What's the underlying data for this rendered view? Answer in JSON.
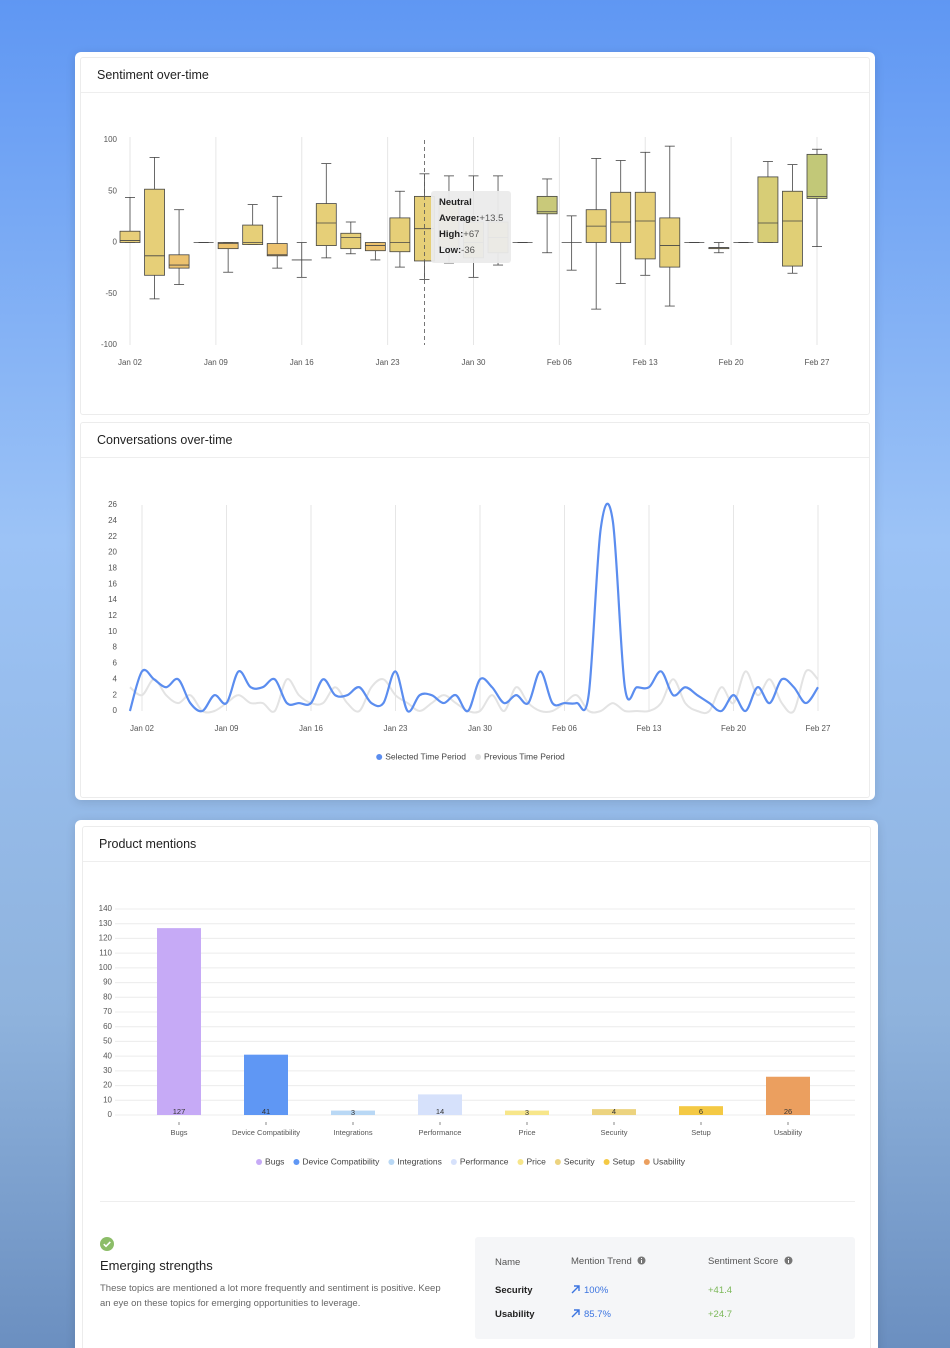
{
  "chart_data": [
    {
      "type": "box",
      "title": "Sentiment over-time",
      "x": [
        0,
        2,
        4,
        6,
        8,
        10,
        12,
        14,
        16,
        18,
        20,
        22,
        24,
        26,
        28,
        30,
        32,
        34,
        36,
        38,
        40,
        42,
        44,
        46,
        48,
        50,
        52,
        54,
        56
      ],
      "low": [
        0,
        -55,
        -41,
        0,
        -29,
        -2,
        -25,
        -34,
        -15,
        -11,
        -17,
        -24,
        -36,
        -20,
        -34,
        -22,
        0,
        -10,
        -27,
        -65,
        -40,
        -32,
        -62,
        0,
        -10,
        0,
        0,
        -30,
        -4
      ],
      "q1": [
        0,
        -32,
        -25,
        0,
        -6,
        -2,
        -13,
        -17,
        -3,
        -6,
        -8,
        -9,
        -18,
        -5,
        -15,
        -10,
        0,
        28,
        0,
        0,
        0,
        -16,
        -24,
        0,
        -6,
        0,
        0,
        -23,
        43
      ],
      "median": [
        2,
        -13,
        -22,
        0,
        -1,
        0,
        -12,
        -17,
        19,
        5,
        -3,
        0,
        13.5,
        10,
        0,
        5,
        0,
        30,
        0,
        16,
        20,
        21,
        -3,
        0,
        -5,
        0,
        19,
        21,
        45
      ],
      "q3": [
        11,
        52,
        -12,
        0,
        0,
        17,
        -1,
        -17,
        38,
        9,
        0,
        24,
        45,
        40,
        20,
        20,
        0,
        45,
        0,
        32,
        49,
        49,
        24,
        0,
        -5,
        0,
        64,
        50,
        86
      ],
      "high": [
        44,
        83,
        32,
        0,
        0,
        37,
        45,
        0,
        77,
        20,
        0,
        50,
        67,
        65,
        65,
        65,
        0,
        62,
        26,
        82,
        80,
        88,
        94,
        0,
        0,
        0,
        79,
        76,
        91
      ],
      "colors": [
        "#e8cf7a",
        "#e6cf78",
        "#ecc26f",
        "#e6cf78",
        "#ecc26f",
        "#e6cf78",
        "#ecc26f",
        "#e6cf78",
        "#e6cf78",
        "#e6cf78",
        "#ecc26f",
        "#e6cf78",
        "#e6cf78",
        "#e6cf78",
        "#e6cf78",
        "#e6cf78",
        "#e6cf78",
        "#c9c97a",
        "#e6cf78",
        "#e6cf78",
        "#e6cf78",
        "#e6cf78",
        "#e6cf78",
        "#e6cf78",
        "#e6cf78",
        "#e6cf78",
        "#d7cd76",
        "#e0cf76",
        "#c2c878"
      ],
      "xlim": [
        0,
        56
      ],
      "xticks": [
        {
          "value": 0,
          "label": "Jan 02"
        },
        {
          "value": 7,
          "label": "Jan 09"
        },
        {
          "value": 14,
          "label": "Jan 16"
        },
        {
          "value": 21,
          "label": "Jan 23"
        },
        {
          "value": 28,
          "label": "Jan 30"
        },
        {
          "value": 35,
          "label": "Feb 06"
        },
        {
          "value": 42,
          "label": "Feb 13"
        },
        {
          "value": 49,
          "label": "Feb 20"
        },
        {
          "value": 56,
          "label": "Feb 27"
        }
      ],
      "ylim": [
        -100,
        100
      ],
      "yticks": [
        -100,
        -50,
        0,
        50,
        100
      ],
      "grid": true,
      "tooltip": {
        "index": 12,
        "title": "Neutral",
        "rows": [
          {
            "label": "Average:",
            "value": "+13.5"
          },
          {
            "label": "High:",
            "value": "+67"
          },
          {
            "label": "Low:",
            "value": "-36"
          }
        ]
      }
    },
    {
      "type": "line",
      "title": "Conversations over-time",
      "x": [
        -1,
        0,
        1,
        2,
        3,
        4,
        5,
        6,
        7,
        8,
        9,
        10,
        11,
        12,
        13,
        14,
        15,
        16,
        17,
        18,
        19,
        20,
        21,
        22,
        23,
        24,
        25,
        26,
        27,
        28,
        29,
        30,
        31,
        32,
        33,
        34,
        35,
        36,
        37,
        38,
        39,
        40,
        41,
        42,
        43,
        44,
        45,
        46,
        47,
        48,
        49,
        50,
        51,
        52,
        53,
        54,
        55,
        56
      ],
      "series": [
        {
          "name": "Previous Time Period",
          "color": "#e3e3e3",
          "values": [
            3,
            2,
            4,
            2,
            1,
            2,
            0,
            0,
            1,
            2,
            1,
            1,
            0,
            4,
            2,
            1,
            1,
            3,
            1,
            0,
            3,
            4,
            2,
            1,
            0,
            1,
            2,
            1,
            0,
            0,
            2,
            0,
            3,
            1,
            0,
            0,
            1,
            2,
            0,
            0,
            1,
            0,
            0,
            0,
            1,
            4,
            1,
            0,
            0,
            3,
            1,
            5,
            2,
            4,
            1,
            0,
            5,
            4
          ]
        },
        {
          "name": "Selected Time Period",
          "color": "#5b8def",
          "values": [
            0,
            5,
            4,
            3,
            4,
            1,
            0,
            2,
            1,
            5,
            3,
            3,
            4,
            1,
            1,
            1,
            4,
            2,
            2,
            3,
            1,
            1,
            5,
            0,
            2,
            2,
            1,
            2,
            0,
            4,
            3,
            1,
            2,
            1,
            5,
            1,
            1,
            1,
            2,
            23,
            24,
            3,
            3,
            3,
            5,
            2,
            3,
            2,
            1,
            0,
            2,
            0,
            3,
            1,
            4,
            3,
            1,
            3
          ]
        }
      ],
      "legend_order": [
        1,
        0
      ],
      "xlim": [
        -1,
        56
      ],
      "xticks": [
        {
          "value": 0,
          "label": "Jan 02"
        },
        {
          "value": 7,
          "label": "Jan 09"
        },
        {
          "value": 14,
          "label": "Jan 16"
        },
        {
          "value": 21,
          "label": "Jan 23"
        },
        {
          "value": 28,
          "label": "Jan 30"
        },
        {
          "value": 35,
          "label": "Feb 06"
        },
        {
          "value": 42,
          "label": "Feb 13"
        },
        {
          "value": 49,
          "label": "Feb 20"
        },
        {
          "value": 56,
          "label": "Feb 27"
        }
      ],
      "ylim": [
        0,
        26
      ],
      "yticks": [
        0,
        2,
        4,
        6,
        8,
        10,
        12,
        14,
        16,
        18,
        20,
        22,
        24,
        26
      ],
      "grid": true,
      "legend": "bottom"
    },
    {
      "type": "bar",
      "title": "Product mentions",
      "categories": [
        "Bugs",
        "Device Compatibility",
        "Integrations",
        "Performance",
        "Price",
        "Security",
        "Setup",
        "Usability"
      ],
      "values": [
        127,
        41,
        3,
        14,
        3,
        4,
        6,
        26
      ],
      "colors": [
        "#c6aaf6",
        "#5f97f4",
        "#b9d8f5",
        "#d6e1fb",
        "#f7e68a",
        "#ecd37f",
        "#f4c944",
        "#eb9f5f"
      ],
      "ylim": [
        0,
        140
      ],
      "yticks": [
        0,
        10,
        20,
        30,
        40,
        50,
        60,
        70,
        80,
        90,
        100,
        110,
        120,
        130,
        140
      ],
      "grid": true,
      "legend": "bottom"
    }
  ],
  "emerging": {
    "title": "Emerging strengths",
    "description": "These topics are mentioned a lot more frequently and sentiment is positive. Keep an eye on these topics for emerging opportunities to leverage.",
    "columns": [
      "Name",
      "Mention Trend",
      "Sentiment Score"
    ],
    "rows": [
      [
        "Security",
        "100%",
        "+41.4"
      ],
      [
        "Usability",
        "85.7%",
        "+24.7"
      ]
    ]
  }
}
